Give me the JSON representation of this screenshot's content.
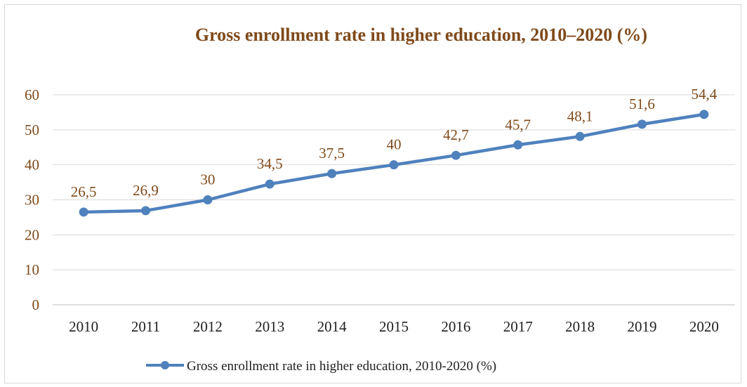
{
  "chart_data": {
    "type": "line",
    "title": "Gross enrollment rate in higher education, 2010–2020 (%)",
    "categories": [
      "2010",
      "2011",
      "2012",
      "2013",
      "2014",
      "2015",
      "2016",
      "2017",
      "2018",
      "2019",
      "2020"
    ],
    "series": [
      {
        "name": "Gross enrollment rate in higher education, 2010-2020 (%)",
        "values": [
          26.5,
          26.9,
          30,
          34.5,
          37.5,
          40,
          42.7,
          45.7,
          48.1,
          51.6,
          54.4
        ],
        "data_labels": [
          "26,5",
          "26,9",
          "30",
          "34,5",
          "37,5",
          "40",
          "42,7",
          "45,7",
          "48,1",
          "51,6",
          "54,4"
        ],
        "color": "#4f81bd"
      }
    ],
    "yticks": [
      "0",
      "10",
      "20",
      "30",
      "40",
      "50",
      "60"
    ],
    "ylim": [
      0,
      60
    ],
    "grid": true,
    "legend_position": "bottom"
  }
}
